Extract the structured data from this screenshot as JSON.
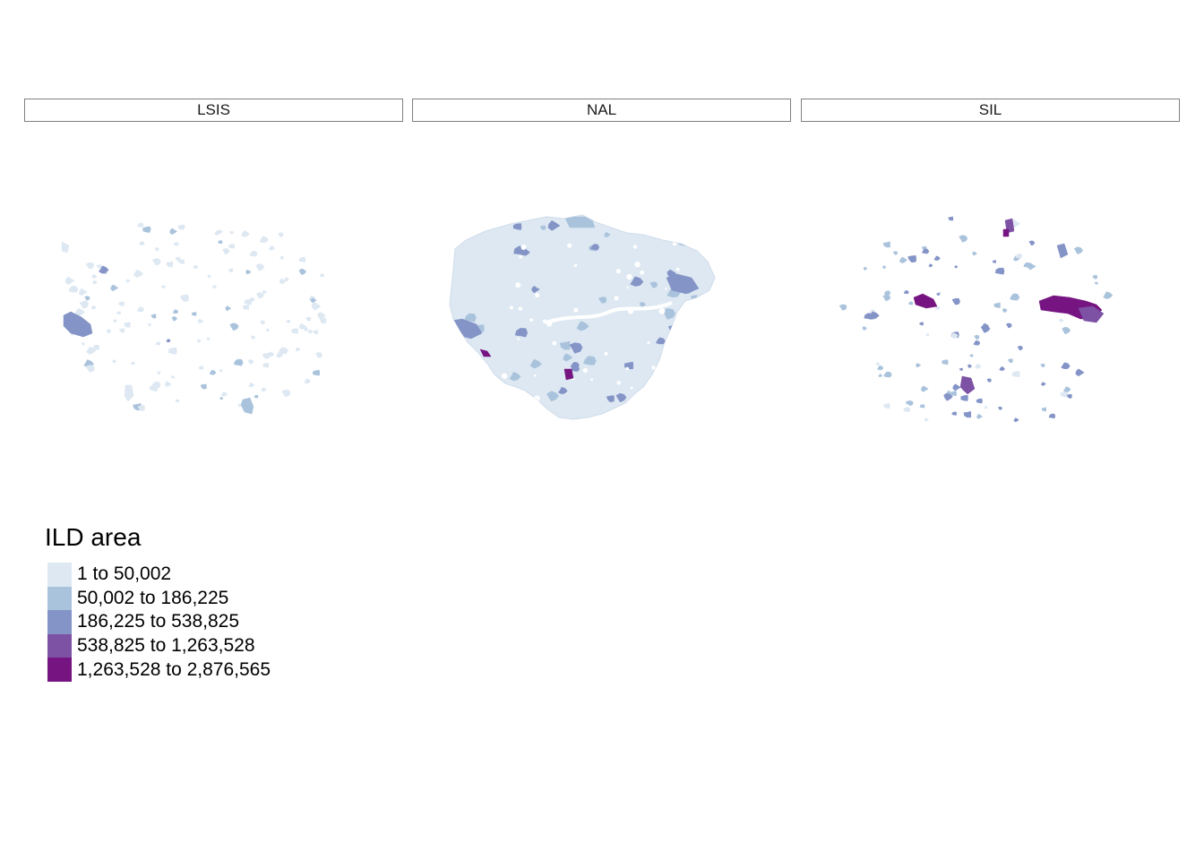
{
  "facets": [
    {
      "label": "LSIS",
      "coverage": "sparse",
      "dominant_class": 0
    },
    {
      "label": "NAL",
      "coverage": "full",
      "dominant_class": 0
    },
    {
      "label": "SIL",
      "coverage": "clustered",
      "dominant_class": 1
    }
  ],
  "legend": {
    "title": "ILD area",
    "classes": [
      {
        "label": "1 to 50,002",
        "color": "#dde8f2"
      },
      {
        "label": "50,002 to 186,225",
        "color": "#aac3dc"
      },
      {
        "label": "186,225 to 538,825",
        "color": "#8494c7"
      },
      {
        "label": "538,825 to 1,263,528",
        "color": "#7d52a4"
      },
      {
        "label": "1,263,528 to 2,876,565",
        "color": "#761581"
      }
    ]
  }
}
